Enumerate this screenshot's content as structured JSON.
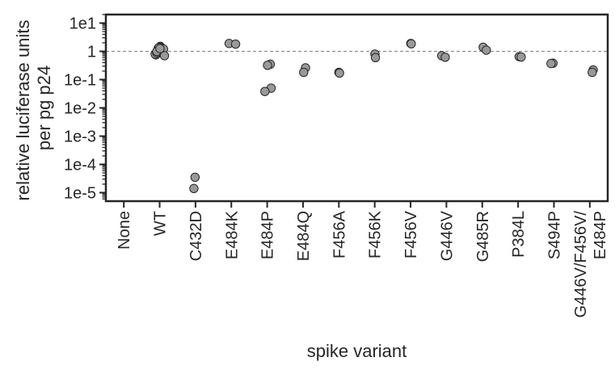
{
  "chart_data": {
    "type": "scatter",
    "xlabel": "spike variant",
    "ylabel_lines": [
      "relative luciferase units",
      "per pg p24"
    ],
    "yscale": "log",
    "ylim": [
      5e-06,
      20
    ],
    "yticks": [
      {
        "value": 10,
        "label": "1e1"
      },
      {
        "value": 1,
        "label": "1"
      },
      {
        "value": 0.1,
        "label": "1e-1"
      },
      {
        "value": 0.01,
        "label": "1e-2"
      },
      {
        "value": 0.001,
        "label": "1e-3"
      },
      {
        "value": 0.0001,
        "label": "1e-4"
      },
      {
        "value": 1e-05,
        "label": "1e-5"
      }
    ],
    "reference_line": 1,
    "marker_color": "#999999",
    "categories": [
      {
        "label": [
          "None"
        ],
        "values": []
      },
      {
        "label": [
          "WT"
        ],
        "values": [
          1.5,
          1.3,
          1.1,
          1.4,
          0.75,
          0.8,
          1.2,
          0.9,
          1.35,
          0.7,
          1.0,
          1.25
        ]
      },
      {
        "label": [
          "C432D"
        ],
        "values": [
          3.5e-05,
          1.4e-05
        ]
      },
      {
        "label": [
          "E484K"
        ],
        "values": [
          1.9,
          1.8
        ]
      },
      {
        "label": [
          "E484P"
        ],
        "values": [
          0.35,
          0.32,
          0.05,
          0.038
        ]
      },
      {
        "label": [
          "E484Q"
        ],
        "values": [
          0.26,
          0.18
        ]
      },
      {
        "label": [
          "F456A"
        ],
        "values": [
          0.18,
          0.17
        ]
      },
      {
        "label": [
          "F456K"
        ],
        "values": [
          0.8,
          0.6
        ]
      },
      {
        "label": [
          "F456V"
        ],
        "values": [
          1.9,
          1.85
        ]
      },
      {
        "label": [
          "G446V"
        ],
        "values": [
          0.7,
          0.62
        ]
      },
      {
        "label": [
          "G485R"
        ],
        "values": [
          1.4,
          1.1
        ]
      },
      {
        "label": [
          "P384L"
        ],
        "values": [
          0.65,
          0.63
        ]
      },
      {
        "label": [
          "S494P"
        ],
        "values": [
          0.38,
          0.37
        ]
      },
      {
        "label": [
          "G446V/F456V/",
          "E484P"
        ],
        "values": [
          0.22,
          0.18
        ]
      }
    ]
  }
}
